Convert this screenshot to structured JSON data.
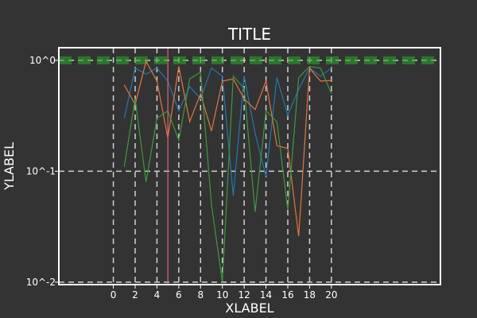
{
  "chart_data": {
    "type": "line",
    "title": "TITLE",
    "xlabel": "XLABEL",
    "ylabel": "YLABEL",
    "y_scale": "log",
    "ylim": [
      0.0095,
      1.3
    ],
    "xlim": [
      -5,
      30
    ],
    "x_ticks": [
      0,
      2,
      4,
      6,
      8,
      10,
      12,
      14,
      16,
      18,
      20
    ],
    "x_tick_labels": [
      "0",
      "2",
      "4",
      "6",
      "8",
      "10",
      "12",
      "14",
      "16",
      "18",
      "20"
    ],
    "y_ticks": [
      0.01,
      0.1,
      1
    ],
    "y_tick_labels": [
      "10^-2",
      "10^-1",
      "10^0"
    ],
    "grid": "dashed",
    "x": [
      1,
      2,
      3,
      4,
      5,
      6,
      7,
      8,
      9,
      10,
      11,
      12,
      13,
      14,
      15,
      16,
      17,
      18,
      19,
      20
    ],
    "series": [
      {
        "values": [
          0.3,
          0.85,
          0.75,
          0.85,
          0.65,
          0.35,
          0.58,
          0.45,
          0.85,
          0.72,
          0.06,
          0.72,
          0.22,
          0.09,
          0.7,
          0.32,
          0.55,
          0.85,
          0.72,
          0.85
        ],
        "color": "#1f77b4"
      },
      {
        "values": [
          0.6,
          0.4,
          0.98,
          0.65,
          0.2,
          0.88,
          0.28,
          0.5,
          0.23,
          0.65,
          0.68,
          0.45,
          0.36,
          0.65,
          0.17,
          0.16,
          0.026,
          0.85,
          0.65,
          0.66
        ],
        "color": "#e4743a"
      },
      {
        "values": [
          0.11,
          0.45,
          0.08,
          0.3,
          0.35,
          0.19,
          0.68,
          0.78,
          0.05,
          0.01,
          0.72,
          0.56,
          0.043,
          0.35,
          0.28,
          0.045,
          0.7,
          0.88,
          0.85,
          0.5
        ],
        "color": "#3a9a3a"
      }
    ],
    "reference_line": {
      "value": 1.0,
      "color": "#2ca02c",
      "style": "thick dashed"
    },
    "vertical_marker": {
      "x": 5,
      "color": "#e0607e"
    }
  }
}
